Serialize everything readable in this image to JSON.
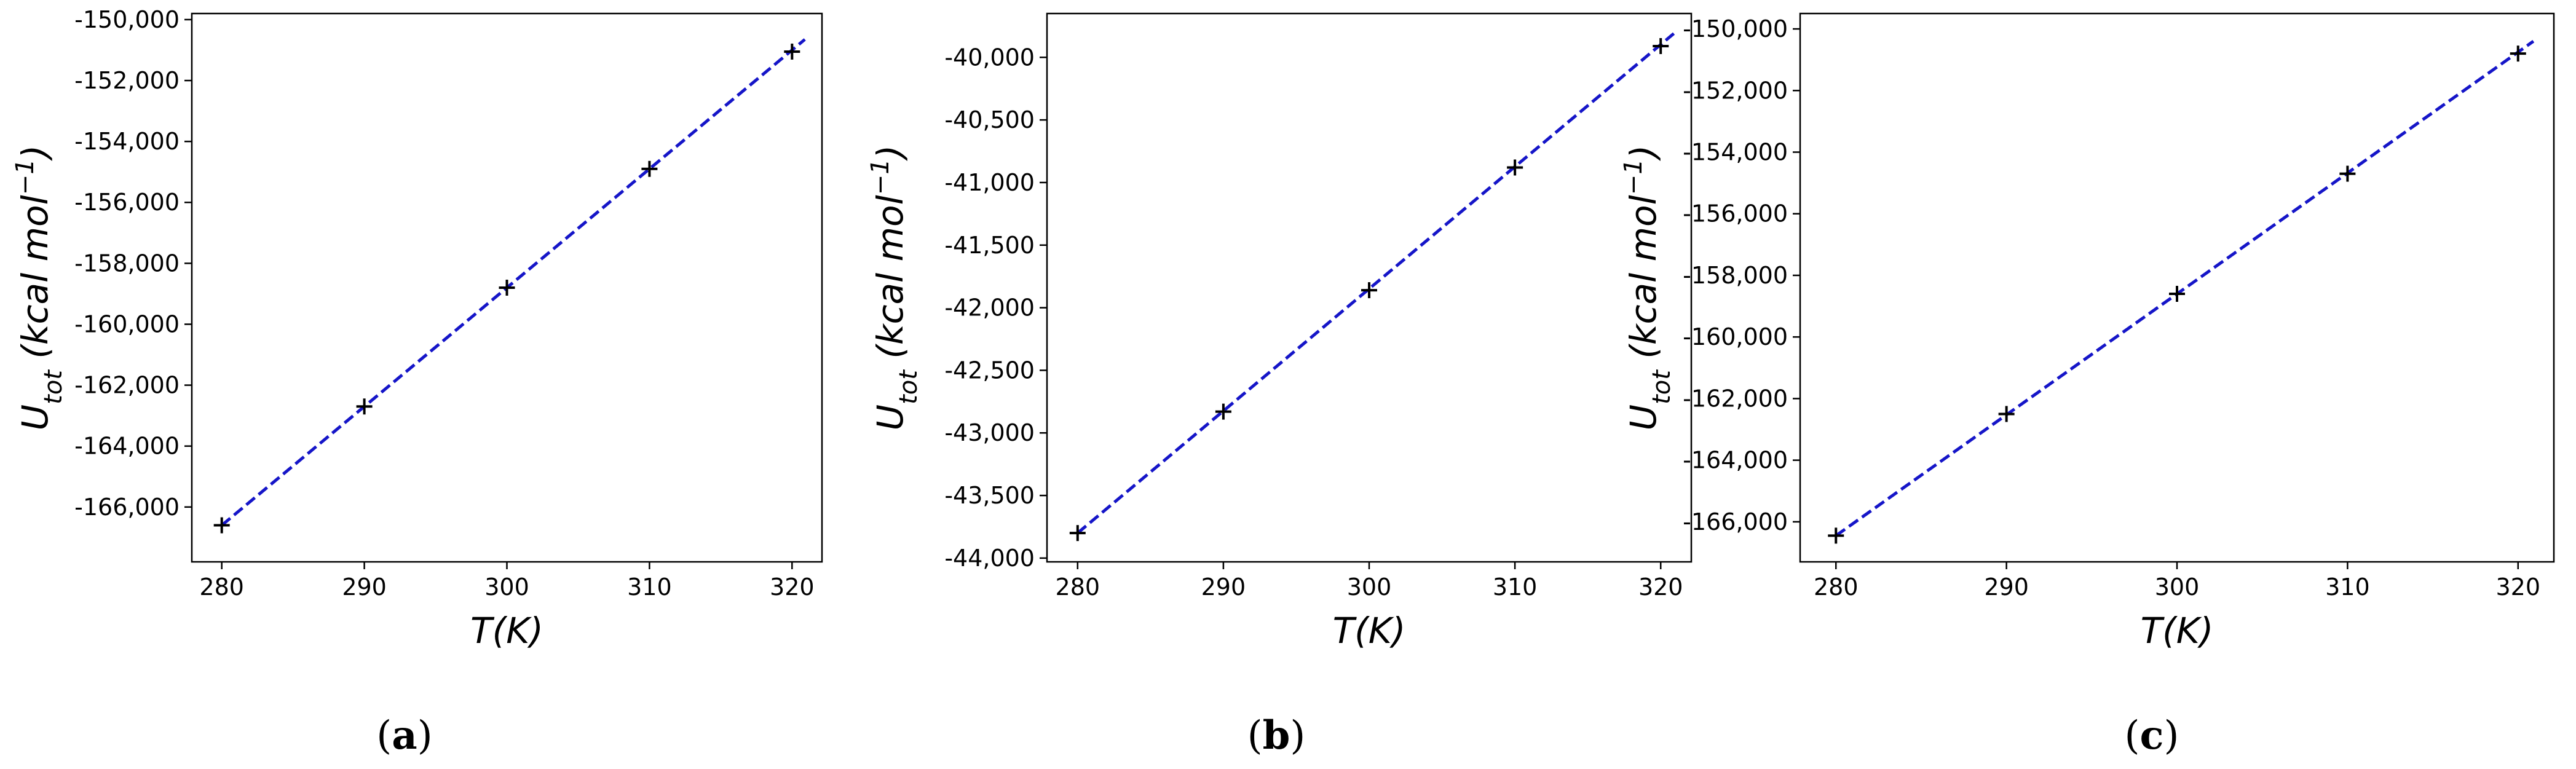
{
  "chart_data": [
    {
      "type": "scatter",
      "caption": "(a)",
      "xlabel": "T(K)",
      "ylabel": "U_tot (kcal mol^-1)",
      "xlim": [
        277.9,
        322.1
      ],
      "ylim": [
        -167800,
        -149800
      ],
      "xticks": [
        280,
        290,
        300,
        310,
        320
      ],
      "xtick_labels": [
        "280",
        "290",
        "300",
        "310",
        "320"
      ],
      "yticks": [
        -150000,
        -152000,
        -154000,
        -156000,
        -158000,
        -160000,
        -162000,
        -164000,
        -166000
      ],
      "ytick_labels": [
        "-150,000",
        "-152,000",
        "-154,000",
        "-156,000",
        "-158,000",
        "-160,000",
        "-162,000",
        "-164,000",
        "-166,000"
      ],
      "points": {
        "x": [
          280,
          290,
          300,
          310,
          320
        ],
        "y": [
          -166600,
          -162700,
          -158800,
          -154900,
          -151050
        ]
      },
      "fit_line": {
        "x": [
          280,
          320.9
        ],
        "y": [
          -166600,
          -150650
        ]
      },
      "colors": {
        "points": "#000000",
        "fit_line": "#1515c8"
      }
    },
    {
      "type": "scatter",
      "caption": "(b)",
      "xlabel": "T(K)",
      "ylabel": "U_tot (kcal mol^-1)",
      "xlim": [
        277.9,
        322.1
      ],
      "ylim": [
        -44030,
        -39650
      ],
      "xticks": [
        280,
        290,
        300,
        310,
        320
      ],
      "xtick_labels": [
        "280",
        "290",
        "300",
        "310",
        "320"
      ],
      "yticks": [
        -40000,
        -40500,
        -41000,
        -41500,
        -42000,
        -42500,
        -43000,
        -43500,
        -44000
      ],
      "ytick_labels": [
        "-40,000",
        "-40,500",
        "-41,000",
        "-41,500",
        "-42,000",
        "-42,500",
        "-43,000",
        "-43,500",
        "-44,000"
      ],
      "points": {
        "x": [
          280,
          290,
          300,
          310,
          320
        ],
        "y": [
          -43800,
          -42830,
          -41860,
          -40880,
          -39910
        ]
      },
      "fit_line": {
        "x": [
          280,
          320.9
        ],
        "y": [
          -43800,
          -39810
        ]
      },
      "colors": {
        "points": "#000000",
        "fit_line": "#1515c8"
      }
    },
    {
      "type": "scatter",
      "caption": "(c)",
      "xlabel": "T(K)",
      "ylabel": "U_tot (kcal mol^-1)",
      "xlim": [
        277.9,
        322.1
      ],
      "ylim": [
        -167300,
        -149500
      ],
      "xticks": [
        280,
        290,
        300,
        310,
        320
      ],
      "xtick_labels": [
        "280",
        "290",
        "300",
        "310",
        "320"
      ],
      "yticks": [
        -150000,
        -152000,
        -154000,
        -156000,
        -158000,
        -160000,
        -162000,
        -164000,
        -166000
      ],
      "ytick_labels": [
        "-150,000",
        "-152,000",
        "-154,000",
        "-156,000",
        "-158,000",
        "-160,000",
        "-162,000",
        "-164,000",
        "-166,000"
      ],
      "points": {
        "x": [
          280,
          290,
          300,
          310,
          320
        ],
        "y": [
          -166450,
          -162500,
          -158600,
          -154700,
          -150800
        ]
      },
      "fit_line": {
        "x": [
          280,
          320.9
        ],
        "y": [
          -166450,
          -150400
        ]
      },
      "colors": {
        "points": "#000000",
        "fit_line": "#1515c8"
      }
    }
  ]
}
